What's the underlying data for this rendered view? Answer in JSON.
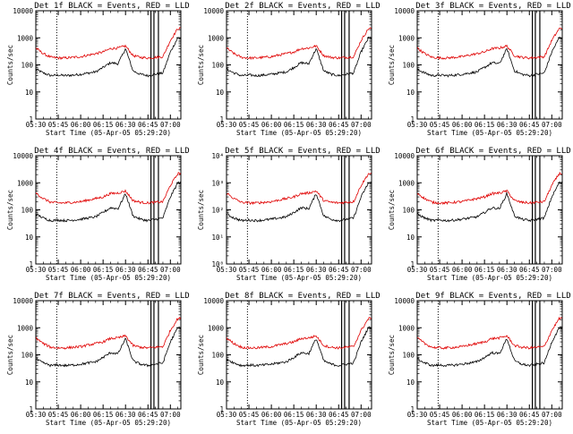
{
  "figure": {
    "panels": [
      {
        "id": "1f",
        "title": "Det 1f BLACK = Events, RED = LLD",
        "exp_top": false
      },
      {
        "id": "2f",
        "title": "Det 2f BLACK = Events, RED = LLD",
        "exp_top": false
      },
      {
        "id": "3f",
        "title": "Det 3f BLACK = Events, RED = LLD",
        "exp_top": false
      },
      {
        "id": "4f",
        "title": "Det 4f BLACK = Events, RED = LLD",
        "exp_top": false
      },
      {
        "id": "5f",
        "title": "Det 5f BLACK = Events, RED = LLD",
        "exp_top": true
      },
      {
        "id": "6f",
        "title": "Det 6f BLACK = Events, RED = LLD",
        "exp_top": false
      },
      {
        "id": "7f",
        "title": "Det 7f BLACK = Events, RED = LLD",
        "exp_top": false
      },
      {
        "id": "8f",
        "title": "Det 8f BLACK = Events, RED = LLD",
        "exp_top": false
      },
      {
        "id": "9f",
        "title": "Det 9f BLACK = Events, RED = LLD",
        "exp_top": false
      }
    ],
    "xlabel": "Start Time (05-Apr-05 05:29:20)",
    "ylabel": "Counts/sec",
    "x_ticks": [
      "05:30",
      "05:45",
      "06:00",
      "06:15",
      "06:30",
      "06:45",
      "07:00"
    ],
    "y_ticks_plain": [
      "1",
      "10",
      "100",
      "1000",
      "10000"
    ],
    "y_ticks_exp": [
      "10⁰",
      "10¹",
      "10²",
      "10³",
      "10⁴"
    ],
    "colors": {
      "events": "#000000",
      "lld": "#e00000",
      "axes": "#000000"
    }
  },
  "chart_data": {
    "type": "line",
    "x": [
      "05:30",
      "05:35",
      "05:40",
      "05:45",
      "05:50",
      "05:55",
      "06:00",
      "06:05",
      "06:10",
      "06:15",
      "06:20",
      "06:25",
      "06:30",
      "06:35",
      "06:40",
      "06:45",
      "06:50",
      "06:55",
      "07:00",
      "07:05"
    ],
    "yscale": "log",
    "ylim": [
      1,
      10000
    ],
    "xlim": [
      "05:30",
      "07:07"
    ],
    "vertical_lines": {
      "dotted": [
        "05:44"
      ],
      "solid": [
        "06:47",
        "06:49",
        "06:52"
      ]
    },
    "series": [
      {
        "name": "Events",
        "values": [
          70,
          50,
          40,
          42,
          40,
          42,
          45,
          50,
          55,
          80,
          120,
          110,
          400,
          60,
          45,
          40,
          45,
          50,
          300,
          1000
        ]
      },
      {
        "name": "LLD",
        "values": [
          420,
          260,
          190,
          180,
          180,
          190,
          200,
          230,
          260,
          300,
          400,
          420,
          500,
          220,
          190,
          180,
          190,
          200,
          800,
          2200
        ]
      }
    ]
  }
}
